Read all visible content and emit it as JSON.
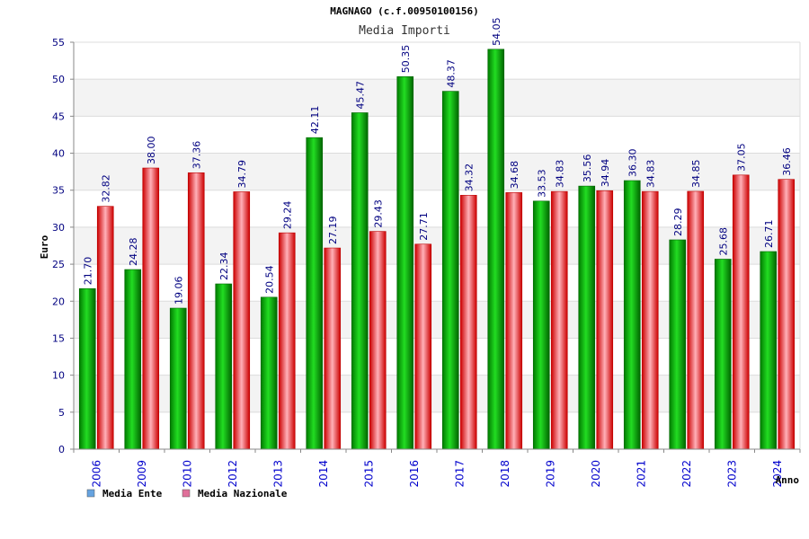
{
  "chart_data": {
    "type": "bar",
    "title": "MAGNAGO (c.f.00950100156)",
    "subtitle": "Media Importi",
    "xlabel": "Anno",
    "ylabel": "Euro",
    "ylim": [
      0,
      55
    ],
    "yticks": [
      0,
      5,
      10,
      15,
      20,
      25,
      30,
      35,
      40,
      45,
      50,
      55
    ],
    "grid": true,
    "legend_position": "bottom-left",
    "categories": [
      "2006",
      "2009",
      "2010",
      "2012",
      "2013",
      "2014",
      "2015",
      "2016",
      "2017",
      "2018",
      "2019",
      "2020",
      "2021",
      "2022",
      "2023",
      "2024"
    ],
    "series": [
      {
        "name": "Media Ente",
        "color": "#00aa00",
        "legend_color": "#66a3e0",
        "values": [
          21.7,
          24.28,
          19.06,
          22.34,
          20.54,
          42.11,
          45.47,
          50.35,
          48.37,
          54.05,
          33.53,
          35.56,
          36.3,
          28.29,
          25.68,
          26.71
        ],
        "labels": [
          "21.70",
          "24.28",
          "19.06",
          "22.34",
          "20.54",
          "42.11",
          "45.47",
          "50.35",
          "48.37",
          "54.05",
          "33.53",
          "35.56",
          "36.30",
          "28.29",
          "25.68",
          "26.71"
        ]
      },
      {
        "name": "Media Nazionale",
        "color": "#dd0000",
        "legend_color": "#e0709a",
        "values": [
          32.82,
          38.0,
          37.36,
          34.79,
          29.24,
          27.19,
          29.43,
          27.71,
          34.32,
          34.68,
          34.83,
          34.94,
          34.83,
          34.85,
          37.05,
          36.46
        ],
        "labels": [
          "32.82",
          "38.00",
          "37.36",
          "34.79",
          "29.24",
          "27.19",
          "29.43",
          "27.71",
          "34.32",
          "34.68",
          "34.83",
          "34.94",
          "34.83",
          "34.85",
          "37.05",
          "36.46"
        ]
      }
    ]
  }
}
